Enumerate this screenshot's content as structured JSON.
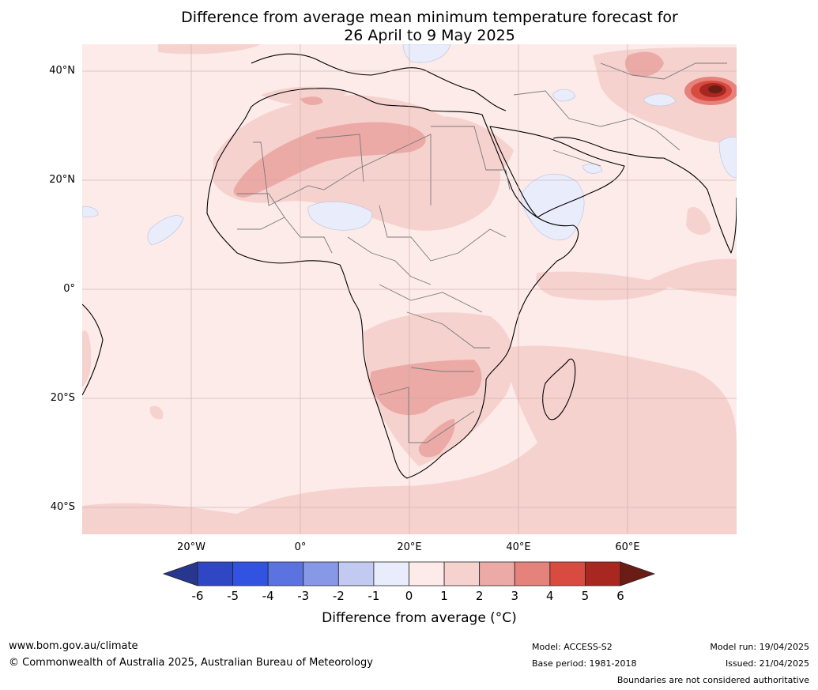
{
  "title": {
    "line1": "Difference from average mean minimum temperature forecast for",
    "line2": "26 April to 9 May 2025"
  },
  "map": {
    "lat_labels": [
      "40°N",
      "20°N",
      "0°",
      "20°S",
      "40°S"
    ],
    "lon_labels": [
      "20°W",
      "0°",
      "20°E",
      "40°E",
      "60°E"
    ],
    "highlight_regions": [
      {
        "area": "Sahara",
        "anomaly_range": "2 to 3"
      },
      {
        "area": "Southern Africa",
        "anomaly_range": "2 to 3"
      },
      {
        "area": "Western Tibet / Karakoram",
        "anomaly_range": "5 to 6+"
      },
      {
        "area": "Sahel / Horn of Africa",
        "anomaly_range": "-1 to 0"
      }
    ]
  },
  "colorbar": {
    "ticks": [
      "-6",
      "-5",
      "-4",
      "-3",
      "-2",
      "-1",
      "0",
      "1",
      "2",
      "3",
      "4",
      "5",
      "6"
    ],
    "colors": [
      "#27378f",
      "#2f47c4",
      "#3253e2",
      "#5a73e0",
      "#8798e6",
      "#c2caf2",
      "#e8ecfb",
      "#fcebe9",
      "#f6d2cf",
      "#ecaaa6",
      "#e5827c",
      "#d94b41",
      "#a82821",
      "#6b1c15"
    ],
    "label": "Difference from average (°C)"
  },
  "footer": {
    "url": "www.bom.gov.au/climate",
    "copyright": "© Commonwealth of Australia 2025, Australian Bureau of Meteorology",
    "model": "Model: ACCESS-S2",
    "base_period": "Base period: 1981-2018",
    "model_run": "Model run: 19/04/2025",
    "issued": "Issued: 21/04/2025",
    "disclaimer": "Boundaries are not considered authoritative"
  }
}
